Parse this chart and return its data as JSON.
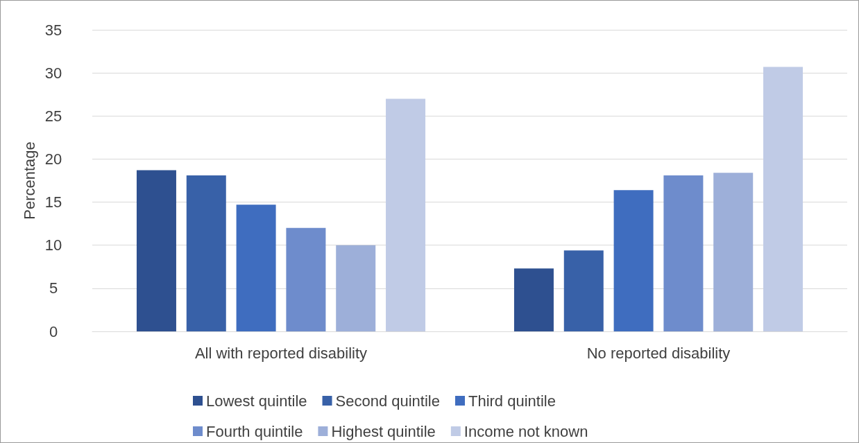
{
  "chart_data": {
    "type": "bar",
    "ylabel": "Percentage",
    "categories": [
      "All with reported disability",
      "No reported disability"
    ],
    "series": [
      {
        "name": "Lowest quintile",
        "color": "#2e5090",
        "values": [
          18.7,
          7.3
        ]
      },
      {
        "name": "Second quintile",
        "color": "#3861a8",
        "values": [
          18.1,
          9.4
        ]
      },
      {
        "name": "Third quintile",
        "color": "#3f6dbf",
        "values": [
          14.7,
          16.4
        ]
      },
      {
        "name": "Fourth quintile",
        "color": "#6e8ccc",
        "values": [
          12.0,
          18.1
        ]
      },
      {
        "name": "Highest quintile",
        "color": "#9dafd9",
        "values": [
          10.0,
          18.4
        ]
      },
      {
        "name": "Income not known",
        "color": "#c0cbe6",
        "values": [
          27.0,
          30.7
        ]
      }
    ],
    "ylim": [
      0,
      35
    ],
    "yticks": [
      0,
      5,
      10,
      15,
      20,
      25,
      30,
      35
    ],
    "grid": "y",
    "legend": "bottom"
  }
}
